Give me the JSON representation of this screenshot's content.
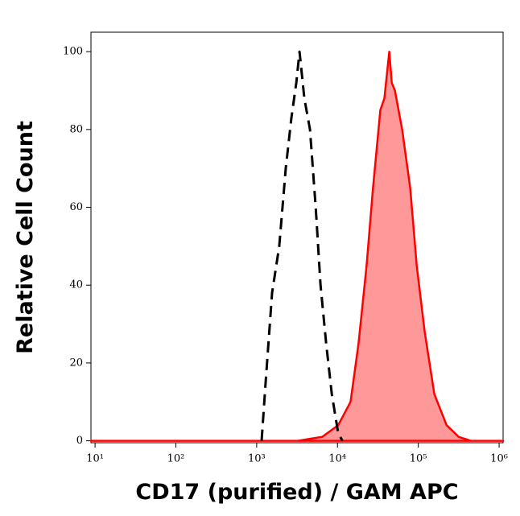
{
  "chart_data": {
    "type": "area",
    "xlabel": "CD17 (purified) / GAM APC",
    "ylabel": "Relative Cell Count",
    "xscale": "log",
    "xlim": [
      8.9,
      1120000
    ],
    "ylim": [
      -0.5,
      105
    ],
    "xticks": [
      {
        "value": 10,
        "label": "10¹"
      },
      {
        "value": 100,
        "label": "10²"
      },
      {
        "value": 1000,
        "label": "10³"
      },
      {
        "value": 10000,
        "label": "10⁴"
      },
      {
        "value": 100000,
        "label": "10⁵"
      },
      {
        "value": 1000000,
        "label": "10⁶"
      }
    ],
    "yticks": [
      0,
      20,
      40,
      60,
      80,
      100
    ],
    "series": [
      {
        "color": "#000000",
        "dashed": true,
        "fill": null,
        "x": [
          1150,
          1290,
          1550,
          1900,
          2290,
          2690,
          3090,
          3390,
          3890,
          4570,
          5370,
          6170,
          7240,
          8510,
          10200,
          11500
        ],
        "values": [
          0,
          15,
          38,
          50,
          70,
          83,
          92,
          100,
          88,
          80,
          60,
          40,
          25,
          12,
          2,
          0
        ]
      },
      {
        "color": "#ff0000",
        "dashed": false,
        "fill": "#ff9999",
        "x": [
          8.9,
          3240,
          6460,
          10200,
          14500,
          18200,
          22900,
          27500,
          33900,
          38000,
          43700,
          47000,
          51300,
          63100,
          79400,
          95500,
          120000,
          158000,
          224000,
          316000,
          447000,
          1120000
        ],
        "values": [
          0,
          0,
          1,
          4,
          10,
          25,
          45,
          65,
          85,
          88,
          100,
          92,
          90,
          80,
          65,
          45,
          28,
          12,
          4,
          1,
          0,
          0
        ]
      }
    ]
  }
}
